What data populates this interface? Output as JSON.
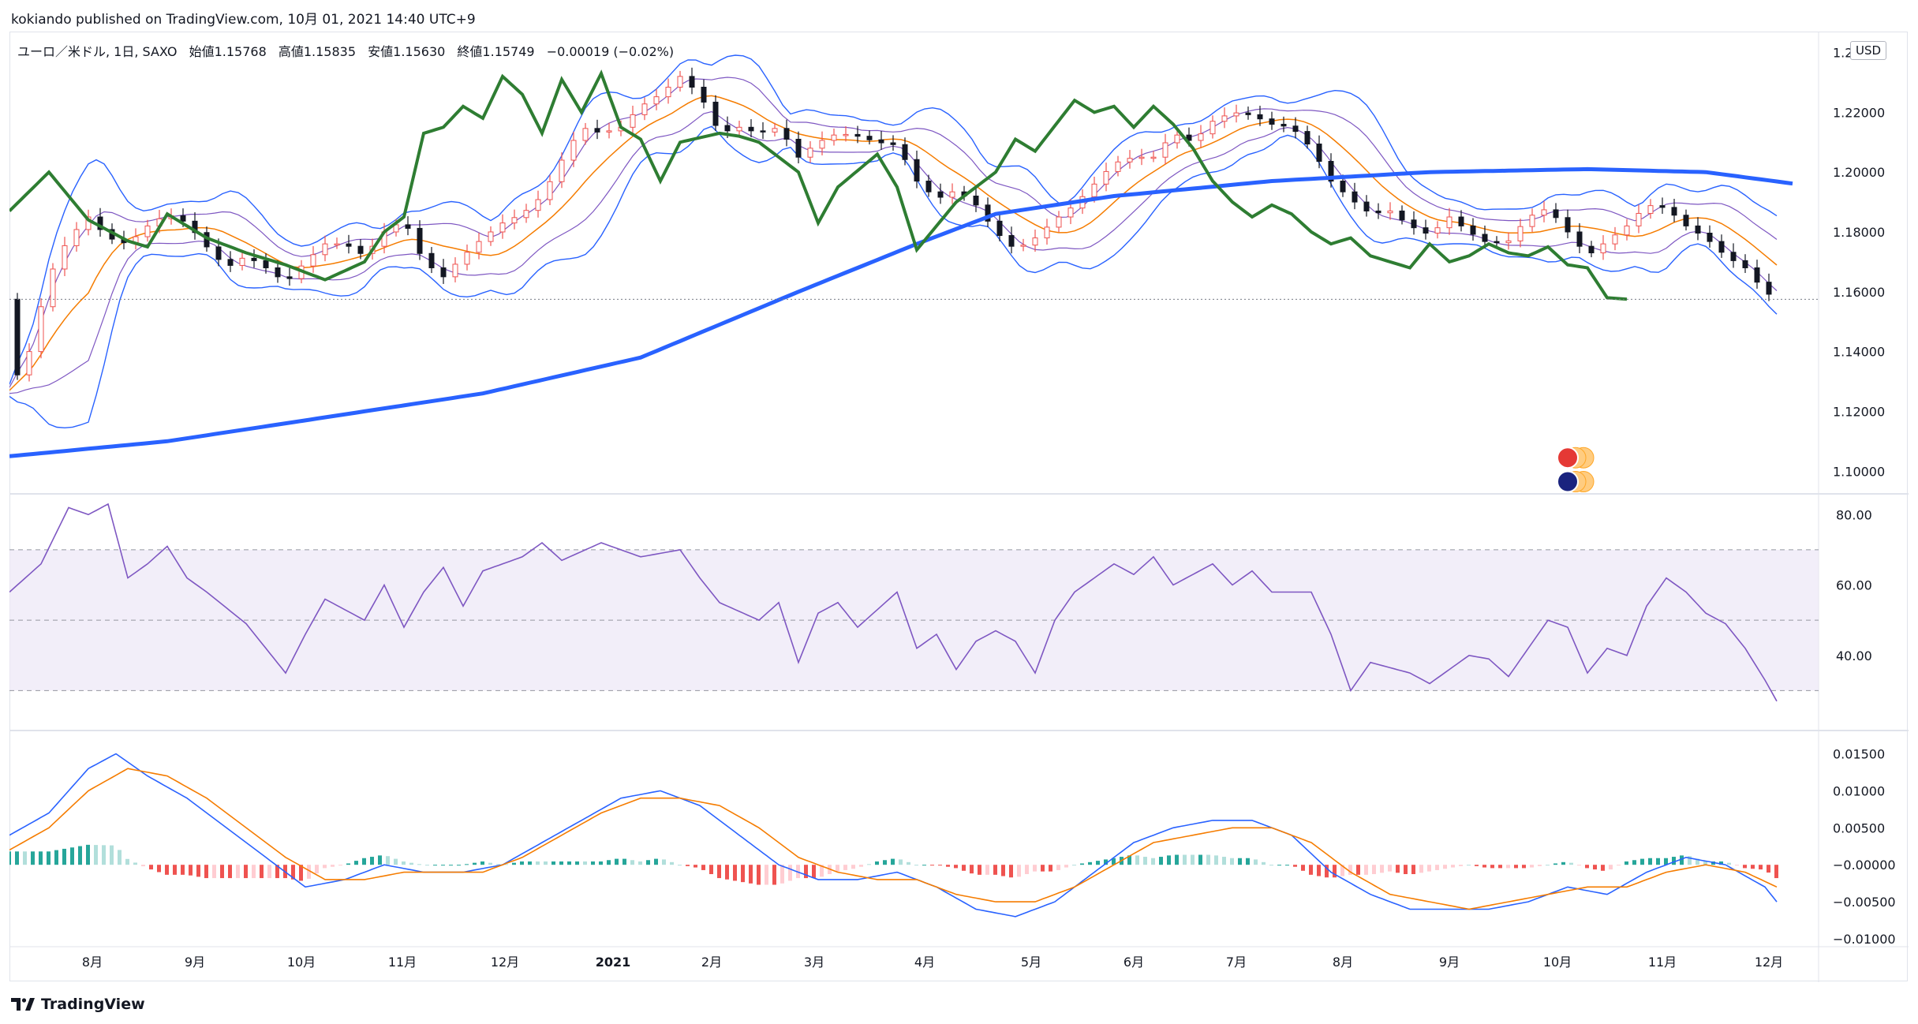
{
  "header": {
    "published_line": "kokiando published on TradingView.com, 10月 01, 2021 14:40 UTC+9"
  },
  "legend": {
    "symbol": "ユーロ／米ドル, 1日, SAXO",
    "open_label": "始値",
    "open": "1.15768",
    "high_label": "高値",
    "high": "1.15835",
    "low_label": "安値",
    "low": "1.15630",
    "close_label": "終値",
    "close": "1.15749",
    "change": "−0.00019 (−0.02%)"
  },
  "currency_button": "USD",
  "footer": {
    "brand": "TradingView"
  },
  "colors": {
    "up": "#ef5350",
    "down": "#131722",
    "sma200": "#2962ff",
    "chikou": "#2e7d32",
    "bb_outer": "#2962ff",
    "bb_inner": "#7e57c2",
    "ema": "#f57c00",
    "rsi": "#7e57c2",
    "macd": "#2962ff",
    "signal": "#f57c00",
    "hist_pos": "#26a69a",
    "hist_neg": "#ef5350"
  },
  "chart_data": [
    {
      "type": "candlestick",
      "title": "ユーロ／米ドル, 1日, SAXO",
      "y_ticks": [
        "1.24000",
        "1.22000",
        "1.20000",
        "1.18000",
        "1.16000",
        "1.14000",
        "1.12000",
        "1.10000"
      ],
      "ylim": [
        1.094,
        1.247
      ],
      "x_ticks": [
        "8月",
        "9月",
        "10月",
        "11月",
        "12月",
        "2021",
        "2月",
        "3月",
        "4月",
        "5月",
        "6月",
        "7月",
        "8月",
        "9月",
        "10月",
        "11月",
        "12月"
      ],
      "last_price": 1.15749,
      "close_path": [
        [
          0,
          1.127
        ],
        [
          5,
          1.14
        ],
        [
          10,
          1.165
        ],
        [
          15,
          1.178
        ],
        [
          20,
          1.185
        ],
        [
          25,
          1.178
        ],
        [
          30,
          1.176
        ],
        [
          35,
          1.182
        ],
        [
          40,
          1.186
        ],
        [
          45,
          1.183
        ],
        [
          50,
          1.175
        ],
        [
          55,
          1.168
        ],
        [
          60,
          1.172
        ],
        [
          65,
          1.168
        ],
        [
          70,
          1.163
        ],
        [
          75,
          1.17
        ],
        [
          80,
          1.176
        ],
        [
          85,
          1.176
        ],
        [
          90,
          1.172
        ],
        [
          95,
          1.18
        ],
        [
          100,
          1.184
        ],
        [
          105,
          1.17
        ],
        [
          110,
          1.165
        ],
        [
          115,
          1.172
        ],
        [
          120,
          1.178
        ],
        [
          125,
          1.183
        ],
        [
          130,
          1.186
        ],
        [
          135,
          1.192
        ],
        [
          140,
          1.204
        ],
        [
          145,
          1.215
        ],
        [
          150,
          1.213
        ],
        [
          155,
          1.215
        ],
        [
          160,
          1.222
        ],
        [
          165,
          1.226
        ],
        [
          170,
          1.232
        ],
        [
          175,
          1.226
        ],
        [
          180,
          1.213
        ],
        [
          185,
          1.215
        ],
        [
          190,
          1.213
        ],
        [
          195,
          1.215
        ],
        [
          200,
          1.205
        ],
        [
          205,
          1.21
        ],
        [
          210,
          1.213
        ],
        [
          215,
          1.212
        ],
        [
          220,
          1.21
        ],
        [
          225,
          1.209
        ],
        [
          230,
          1.197
        ],
        [
          235,
          1.191
        ],
        [
          240,
          1.194
        ],
        [
          245,
          1.189
        ],
        [
          250,
          1.18
        ],
        [
          255,
          1.174
        ],
        [
          260,
          1.178
        ],
        [
          265,
          1.184
        ],
        [
          270,
          1.189
        ],
        [
          275,
          1.196
        ],
        [
          280,
          1.203
        ],
        [
          285,
          1.205
        ],
        [
          290,
          1.205
        ],
        [
          295,
          1.213
        ],
        [
          300,
          1.21
        ],
        [
          305,
          1.217
        ],
        [
          310,
          1.22
        ],
        [
          315,
          1.219
        ],
        [
          320,
          1.216
        ],
        [
          325,
          1.215
        ],
        [
          330,
          1.208
        ],
        [
          335,
          1.197
        ],
        [
          340,
          1.191
        ],
        [
          345,
          1.186
        ],
        [
          350,
          1.187
        ],
        [
          355,
          1.182
        ],
        [
          360,
          1.179
        ],
        [
          365,
          1.185
        ],
        [
          370,
          1.18
        ],
        [
          375,
          1.176
        ],
        [
          380,
          1.177
        ],
        [
          385,
          1.185
        ],
        [
          390,
          1.188
        ],
        [
          395,
          1.18
        ],
        [
          400,
          1.172
        ],
        [
          405,
          1.177
        ],
        [
          410,
          1.182
        ],
        [
          415,
          1.189
        ],
        [
          420,
          1.188
        ],
        [
          425,
          1.182
        ],
        [
          430,
          1.178
        ],
        [
          435,
          1.172
        ],
        [
          440,
          1.168
        ],
        [
          445,
          1.16
        ],
        [
          448,
          1.1575
        ]
      ],
      "sma200": [
        [
          0,
          1.105
        ],
        [
          40,
          1.11
        ],
        [
          80,
          1.118
        ],
        [
          120,
          1.126
        ],
        [
          160,
          1.138
        ],
        [
          200,
          1.16
        ],
        [
          230,
          1.176
        ],
        [
          250,
          1.186
        ],
        [
          280,
          1.192
        ],
        [
          320,
          1.197
        ],
        [
          360,
          1.2
        ],
        [
          400,
          1.201
        ],
        [
          430,
          1.2
        ],
        [
          453,
          1.196
        ]
      ],
      "chikou": [
        [
          0,
          1.187
        ],
        [
          10,
          1.2
        ],
        [
          20,
          1.184
        ],
        [
          30,
          1.177
        ],
        [
          35,
          1.175
        ],
        [
          40,
          1.186
        ],
        [
          50,
          1.178
        ],
        [
          60,
          1.173
        ],
        [
          70,
          1.169
        ],
        [
          80,
          1.164
        ],
        [
          90,
          1.17
        ],
        [
          95,
          1.18
        ],
        [
          100,
          1.185
        ],
        [
          105,
          1.213
        ],
        [
          110,
          1.215
        ],
        [
          115,
          1.222
        ],
        [
          120,
          1.218
        ],
        [
          125,
          1.232
        ],
        [
          130,
          1.226
        ],
        [
          135,
          1.213
        ],
        [
          140,
          1.231
        ],
        [
          145,
          1.22
        ],
        [
          150,
          1.233
        ],
        [
          155,
          1.215
        ],
        [
          160,
          1.211
        ],
        [
          165,
          1.197
        ],
        [
          170,
          1.21
        ],
        [
          180,
          1.213
        ],
        [
          185,
          1.212
        ],
        [
          190,
          1.21
        ],
        [
          200,
          1.2
        ],
        [
          205,
          1.183
        ],
        [
          210,
          1.195
        ],
        [
          220,
          1.206
        ],
        [
          225,
          1.195
        ],
        [
          230,
          1.174
        ],
        [
          240,
          1.19
        ],
        [
          250,
          1.2
        ],
        [
          255,
          1.211
        ],
        [
          260,
          1.207
        ],
        [
          270,
          1.224
        ],
        [
          275,
          1.22
        ],
        [
          280,
          1.222
        ],
        [
          285,
          1.215
        ],
        [
          290,
          1.222
        ],
        [
          295,
          1.216
        ],
        [
          300,
          1.208
        ],
        [
          305,
          1.197
        ],
        [
          310,
          1.19
        ],
        [
          315,
          1.185
        ],
        [
          320,
          1.189
        ],
        [
          325,
          1.186
        ],
        [
          330,
          1.18
        ],
        [
          335,
          1.176
        ],
        [
          340,
          1.178
        ],
        [
          345,
          1.172
        ],
        [
          350,
          1.17
        ],
        [
          355,
          1.168
        ],
        [
          360,
          1.176
        ],
        [
          365,
          1.17
        ],
        [
          370,
          1.172
        ],
        [
          375,
          1.176
        ],
        [
          380,
          1.173
        ],
        [
          385,
          1.172
        ],
        [
          390,
          1.175
        ],
        [
          395,
          1.169
        ],
        [
          400,
          1.168
        ],
        [
          405,
          1.158
        ],
        [
          410,
          1.1575
        ]
      ]
    },
    {
      "type": "line",
      "title": "RSI",
      "y_ticks": [
        "80.00",
        "60.00",
        "40.00"
      ],
      "ylim": [
        20,
        85
      ],
      "band": [
        30,
        70
      ],
      "midline": 50,
      "values": [
        [
          0,
          58
        ],
        [
          8,
          66
        ],
        [
          15,
          82
        ],
        [
          20,
          80
        ],
        [
          25,
          83
        ],
        [
          30,
          62
        ],
        [
          35,
          66
        ],
        [
          40,
          71
        ],
        [
          45,
          62
        ],
        [
          50,
          58
        ],
        [
          60,
          49
        ],
        [
          70,
          35
        ],
        [
          75,
          46
        ],
        [
          80,
          56
        ],
        [
          90,
          50
        ],
        [
          95,
          60
        ],
        [
          100,
          48
        ],
        [
          105,
          58
        ],
        [
          110,
          65
        ],
        [
          115,
          54
        ],
        [
          120,
          64
        ],
        [
          130,
          68
        ],
        [
          135,
          72
        ],
        [
          140,
          67
        ],
        [
          150,
          72
        ],
        [
          160,
          68
        ],
        [
          170,
          70
        ],
        [
          175,
          62
        ],
        [
          180,
          55
        ],
        [
          190,
          50
        ],
        [
          195,
          55
        ],
        [
          200,
          38
        ],
        [
          205,
          52
        ],
        [
          210,
          55
        ],
        [
          215,
          48
        ],
        [
          225,
          58
        ],
        [
          230,
          42
        ],
        [
          235,
          46
        ],
        [
          240,
          36
        ],
        [
          245,
          44
        ],
        [
          250,
          47
        ],
        [
          255,
          44
        ],
        [
          260,
          35
        ],
        [
          265,
          50
        ],
        [
          270,
          58
        ],
        [
          280,
          66
        ],
        [
          285,
          63
        ],
        [
          290,
          68
        ],
        [
          295,
          60
        ],
        [
          305,
          66
        ],
        [
          310,
          60
        ],
        [
          315,
          64
        ],
        [
          320,
          58
        ],
        [
          330,
          58
        ],
        [
          335,
          46
        ],
        [
          340,
          30
        ],
        [
          345,
          38
        ],
        [
          355,
          35
        ],
        [
          360,
          32
        ],
        [
          370,
          40
        ],
        [
          375,
          39
        ],
        [
          380,
          34
        ],
        [
          390,
          50
        ],
        [
          395,
          48
        ],
        [
          400,
          35
        ],
        [
          405,
          42
        ],
        [
          410,
          40
        ],
        [
          415,
          54
        ],
        [
          420,
          62
        ],
        [
          425,
          58
        ],
        [
          430,
          52
        ],
        [
          435,
          49
        ],
        [
          440,
          42
        ],
        [
          445,
          33
        ],
        [
          448,
          27
        ]
      ]
    },
    {
      "type": "bar+line",
      "title": "MACD",
      "y_ticks": [
        "0.01500",
        "0.01000",
        "0.00500",
        "−0.00000",
        "−0.00500",
        "−0.01000"
      ],
      "ylim": [
        -0.01,
        0.0175
      ],
      "macd": [
        [
          0,
          0.004
        ],
        [
          10,
          0.007
        ],
        [
          20,
          0.013
        ],
        [
          27,
          0.015
        ],
        [
          35,
          0.012
        ],
        [
          45,
          0.009
        ],
        [
          55,
          0.005
        ],
        [
          65,
          0.001
        ],
        [
          75,
          -0.003
        ],
        [
          85,
          -0.002
        ],
        [
          95,
          0.0
        ],
        [
          105,
          -0.001
        ],
        [
          115,
          -0.001
        ],
        [
          125,
          0.0
        ],
        [
          135,
          0.003
        ],
        [
          145,
          0.006
        ],
        [
          155,
          0.009
        ],
        [
          165,
          0.01
        ],
        [
          175,
          0.008
        ],
        [
          185,
          0.004
        ],
        [
          195,
          0.0
        ],
        [
          205,
          -0.002
        ],
        [
          215,
          -0.002
        ],
        [
          225,
          -0.001
        ],
        [
          235,
          -0.003
        ],
        [
          245,
          -0.006
        ],
        [
          255,
          -0.007
        ],
        [
          265,
          -0.005
        ],
        [
          275,
          -0.001
        ],
        [
          285,
          0.003
        ],
        [
          295,
          0.005
        ],
        [
          305,
          0.006
        ],
        [
          315,
          0.006
        ],
        [
          325,
          0.004
        ],
        [
          335,
          -0.001
        ],
        [
          345,
          -0.004
        ],
        [
          355,
          -0.006
        ],
        [
          365,
          -0.006
        ],
        [
          375,
          -0.006
        ],
        [
          385,
          -0.005
        ],
        [
          395,
          -0.003
        ],
        [
          405,
          -0.004
        ],
        [
          415,
          -0.001
        ],
        [
          425,
          0.001
        ],
        [
          435,
          0.0
        ],
        [
          445,
          -0.003
        ],
        [
          448,
          -0.005
        ]
      ],
      "signal": [
        [
          0,
          0.002
        ],
        [
          10,
          0.005
        ],
        [
          20,
          0.01
        ],
        [
          30,
          0.013
        ],
        [
          40,
          0.012
        ],
        [
          50,
          0.009
        ],
        [
          60,
          0.005
        ],
        [
          70,
          0.001
        ],
        [
          80,
          -0.002
        ],
        [
          90,
          -0.002
        ],
        [
          100,
          -0.001
        ],
        [
          110,
          -0.001
        ],
        [
          120,
          -0.001
        ],
        [
          130,
          0.001
        ],
        [
          140,
          0.004
        ],
        [
          150,
          0.007
        ],
        [
          160,
          0.009
        ],
        [
          170,
          0.009
        ],
        [
          180,
          0.008
        ],
        [
          190,
          0.005
        ],
        [
          200,
          0.001
        ],
        [
          210,
          -0.001
        ],
        [
          220,
          -0.002
        ],
        [
          230,
          -0.002
        ],
        [
          240,
          -0.004
        ],
        [
          250,
          -0.005
        ],
        [
          260,
          -0.005
        ],
        [
          270,
          -0.003
        ],
        [
          280,
          0.0
        ],
        [
          290,
          0.003
        ],
        [
          300,
          0.004
        ],
        [
          310,
          0.005
        ],
        [
          320,
          0.005
        ],
        [
          330,
          0.003
        ],
        [
          340,
          -0.001
        ],
        [
          350,
          -0.004
        ],
        [
          360,
          -0.005
        ],
        [
          370,
          -0.006
        ],
        [
          380,
          -0.005
        ],
        [
          390,
          -0.004
        ],
        [
          400,
          -0.003
        ],
        [
          410,
          -0.003
        ],
        [
          420,
          -0.001
        ],
        [
          430,
          0.0
        ],
        [
          440,
          -0.001
        ],
        [
          448,
          -0.003
        ]
      ]
    }
  ]
}
